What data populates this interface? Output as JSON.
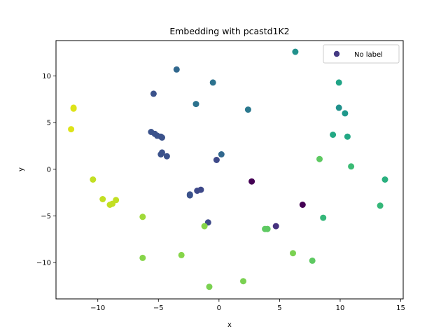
{
  "chart_data": {
    "type": "scatter",
    "title": "Embedding with pcastd1K2",
    "xlabel": "x",
    "ylabel": "y",
    "xlim": [
      -13.45,
      15.2
    ],
    "ylim": [
      -13.9,
      13.8
    ],
    "xticks": [
      -10,
      -5,
      0,
      5,
      10,
      15
    ],
    "yticks": [
      -10,
      -5,
      0,
      5,
      10
    ],
    "xtick_labels": [
      "−10",
      "−5",
      "0",
      "5",
      "10",
      "15"
    ],
    "ytick_labels": [
      "−10",
      "−5",
      "0",
      "5",
      "10"
    ],
    "grid": false,
    "legend": {
      "entries": [
        "No label"
      ],
      "position": "top-right",
      "marker_color": "#443983"
    },
    "series": [
      {
        "name": "No label",
        "points": [
          {
            "x": 6.3,
            "y": 12.6,
            "c": "#21918c"
          },
          {
            "x": -3.5,
            "y": 10.7,
            "c": "#31688e"
          },
          {
            "x": -0.5,
            "y": 9.3,
            "c": "#2c728e"
          },
          {
            "x": 9.9,
            "y": 9.3,
            "c": "#20a486"
          },
          {
            "x": -5.4,
            "y": 8.1,
            "c": "#3b528b"
          },
          {
            "x": -1.9,
            "y": 7.0,
            "c": "#2c728e"
          },
          {
            "x": 9.9,
            "y": 6.6,
            "c": "#21918c"
          },
          {
            "x": -12.0,
            "y": 6.6,
            "c": "#dde318"
          },
          {
            "x": -12.0,
            "y": 6.5,
            "c": "#dde318"
          },
          {
            "x": 2.4,
            "y": 6.4,
            "c": "#2a788e"
          },
          {
            "x": 10.4,
            "y": 6.0,
            "c": "#1f988b"
          },
          {
            "x": -12.2,
            "y": 4.3,
            "c": "#dde318"
          },
          {
            "x": -5.6,
            "y": 4.0,
            "c": "#3b528b"
          },
          {
            "x": -5.3,
            "y": 3.8,
            "c": "#3b528b"
          },
          {
            "x": -5.1,
            "y": 3.6,
            "c": "#3b528b"
          },
          {
            "x": -4.8,
            "y": 3.5,
            "c": "#3b528b"
          },
          {
            "x": -4.7,
            "y": 3.4,
            "c": "#3b528b"
          },
          {
            "x": 9.4,
            "y": 3.7,
            "c": "#22a884"
          },
          {
            "x": 10.6,
            "y": 3.5,
            "c": "#22a884"
          },
          {
            "x": -4.7,
            "y": 1.8,
            "c": "#3b528b"
          },
          {
            "x": -4.8,
            "y": 1.6,
            "c": "#3b528b"
          },
          {
            "x": 0.2,
            "y": 1.6,
            "c": "#31688e"
          },
          {
            "x": -4.3,
            "y": 1.4,
            "c": "#3b528b"
          },
          {
            "x": 8.3,
            "y": 1.1,
            "c": "#5ec962"
          },
          {
            "x": -0.2,
            "y": 1.0,
            "c": "#3e4989"
          },
          {
            "x": 10.9,
            "y": 0.3,
            "c": "#3bbb75"
          },
          {
            "x": -10.4,
            "y": -1.1,
            "c": "#c2df23"
          },
          {
            "x": 13.7,
            "y": -1.1,
            "c": "#2ab07f"
          },
          {
            "x": 2.7,
            "y": -1.3,
            "c": "#440154"
          },
          {
            "x": -1.5,
            "y": -2.2,
            "c": "#3e4989"
          },
          {
            "x": -1.8,
            "y": -2.3,
            "c": "#3e4989"
          },
          {
            "x": -2.4,
            "y": -2.7,
            "c": "#3b528b"
          },
          {
            "x": -2.4,
            "y": -2.8,
            "c": "#3b528b"
          },
          {
            "x": -9.6,
            "y": -3.2,
            "c": "#c2df23"
          },
          {
            "x": -8.5,
            "y": -3.3,
            "c": "#c2df23"
          },
          {
            "x": -8.8,
            "y": -3.7,
            "c": "#c2df23"
          },
          {
            "x": -9.0,
            "y": -3.8,
            "c": "#c2df23"
          },
          {
            "x": 6.9,
            "y": -3.8,
            "c": "#440154"
          },
          {
            "x": 13.3,
            "y": -3.9,
            "c": "#35b779"
          },
          {
            "x": -6.3,
            "y": -5.1,
            "c": "#a0da39"
          },
          {
            "x": 8.6,
            "y": -5.2,
            "c": "#35b779"
          },
          {
            "x": -0.9,
            "y": -5.7,
            "c": "#3e4989"
          },
          {
            "x": -1.2,
            "y": -6.1,
            "c": "#86d549"
          },
          {
            "x": 4.7,
            "y": -6.1,
            "c": "#46327e"
          },
          {
            "x": 4.0,
            "y": -6.4,
            "c": "#5ec962"
          },
          {
            "x": 3.8,
            "y": -6.4,
            "c": "#5ec962"
          },
          {
            "x": 6.1,
            "y": -9.0,
            "c": "#7ad151"
          },
          {
            "x": -3.1,
            "y": -9.2,
            "c": "#86d549"
          },
          {
            "x": -6.3,
            "y": -9.5,
            "c": "#86d549"
          },
          {
            "x": 7.7,
            "y": -9.8,
            "c": "#5ec962"
          },
          {
            "x": 2.0,
            "y": -12.0,
            "c": "#7ad151"
          },
          {
            "x": -0.8,
            "y": -12.6,
            "c": "#7ad151"
          }
        ]
      }
    ]
  }
}
